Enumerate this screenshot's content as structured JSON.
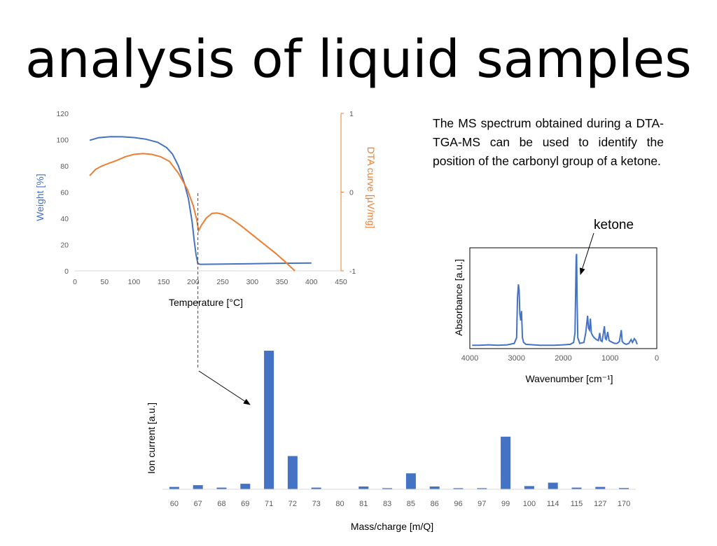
{
  "slide": {
    "title": "analysis of liquid samples",
    "description": "The MS spectrum obtained during a DTA-TGA-MS can be used to identify the position of the carbonyl group of a ketone."
  },
  "colors": {
    "blue": "#4472C4",
    "orange": "#ED7D31",
    "ir": "#4472C4"
  },
  "chart_data": [
    {
      "type": "line",
      "xlabel": "Temperature [°C]",
      "ylabel": "Weight [%]",
      "y2label": "DTA curve [µV/mg]",
      "xlim": [
        0,
        450
      ],
      "ylim": [
        0,
        120
      ],
      "y2lim": [
        -1,
        1
      ],
      "xticks": [
        "0",
        "50",
        "100",
        "150",
        "200",
        "250",
        "300",
        "350",
        "400",
        "450"
      ],
      "yticks": [
        "0",
        "20",
        "40",
        "60",
        "80",
        "100",
        "120"
      ],
      "y2ticks": [
        "-1",
        "0",
        "1"
      ],
      "marker_x": 208,
      "series": [
        {
          "axis": "left",
          "color": "#4472C4",
          "points": [
            [
              25,
              99.5
            ],
            [
              40,
              101.5
            ],
            [
              60,
              102.3
            ],
            [
              80,
              102.2
            ],
            [
              100,
              101.6
            ],
            [
              120,
              100.4
            ],
            [
              140,
              98
            ],
            [
              155,
              94
            ],
            [
              165,
              89
            ],
            [
              175,
              80
            ],
            [
              185,
              67
            ],
            [
              192,
              55
            ],
            [
              198,
              38
            ],
            [
              202,
              22
            ],
            [
              205,
              12
            ],
            [
              208,
              5.5
            ],
            [
              212,
              5
            ],
            [
              250,
              5.2
            ],
            [
              300,
              5.5
            ],
            [
              350,
              5.8
            ],
            [
              400,
              6
            ]
          ]
        },
        {
          "axis": "right",
          "color": "#ED7D31",
          "points": [
            [
              25,
              0.21
            ],
            [
              35,
              0.29
            ],
            [
              45,
              0.33
            ],
            [
              55,
              0.36
            ],
            [
              70,
              0.4
            ],
            [
              85,
              0.45
            ],
            [
              100,
              0.48
            ],
            [
              115,
              0.49
            ],
            [
              130,
              0.48
            ],
            [
              145,
              0.45
            ],
            [
              160,
              0.39
            ],
            [
              175,
              0.24
            ],
            [
              190,
              0.04
            ],
            [
              200,
              -0.17
            ],
            [
              206,
              -0.35
            ],
            [
              209,
              -0.49
            ],
            [
              214,
              -0.42
            ],
            [
              222,
              -0.33
            ],
            [
              232,
              -0.27
            ],
            [
              240,
              -0.265
            ],
            [
              250,
              -0.28
            ],
            [
              265,
              -0.34
            ],
            [
              280,
              -0.42
            ],
            [
              300,
              -0.54
            ],
            [
              320,
              -0.66
            ],
            [
              340,
              -0.78
            ],
            [
              355,
              -0.88
            ],
            [
              365,
              -0.95
            ],
            [
              372,
              -1.0
            ]
          ]
        }
      ]
    },
    {
      "type": "line",
      "xlabel": "Wavenumber [cm⁻¹]",
      "ylabel": "Absorbance [a.u.]",
      "xlim": [
        4000,
        0
      ],
      "xticks": [
        "4000",
        "3000",
        "2000",
        "1000",
        "0"
      ],
      "annotation": "ketone",
      "annotation_x": 1715,
      "series": [
        {
          "color": "#4472C4",
          "points": [
            [
              3950,
              0.02
            ],
            [
              3800,
              0.02
            ],
            [
              3600,
              0.025
            ],
            [
              3400,
              0.02
            ],
            [
              3200,
              0.025
            ],
            [
              3050,
              0.04
            ],
            [
              3000,
              0.1
            ],
            [
              2980,
              0.52
            ],
            [
              2960,
              0.66
            ],
            [
              2945,
              0.6
            ],
            [
              2930,
              0.35
            ],
            [
              2910,
              0.28
            ],
            [
              2895,
              0.38
            ],
            [
              2875,
              0.1
            ],
            [
              2850,
              0.05
            ],
            [
              2800,
              0.03
            ],
            [
              2500,
              0.02
            ],
            [
              2200,
              0.02
            ],
            [
              2000,
              0.025
            ],
            [
              1850,
              0.03
            ],
            [
              1780,
              0.05
            ],
            [
              1750,
              0.15
            ],
            [
              1725,
              0.95
            ],
            [
              1715,
              0.98
            ],
            [
              1705,
              0.5
            ],
            [
              1690,
              0.1
            ],
            [
              1650,
              0.04
            ],
            [
              1560,
              0.05
            ],
            [
              1520,
              0.15
            ],
            [
              1480,
              0.33
            ],
            [
              1460,
              0.2
            ],
            [
              1440,
              0.18
            ],
            [
              1420,
              0.3
            ],
            [
              1400,
              0.15
            ],
            [
              1370,
              0.12
            ],
            [
              1340,
              0.1
            ],
            [
              1290,
              0.08
            ],
            [
              1250,
              0.07
            ],
            [
              1220,
              0.15
            ],
            [
              1200,
              0.07
            ],
            [
              1170,
              0.06
            ],
            [
              1120,
              0.22
            ],
            [
              1100,
              0.09
            ],
            [
              1080,
              0.08
            ],
            [
              1050,
              0.16
            ],
            [
              1020,
              0.07
            ],
            [
              990,
              0.06
            ],
            [
              950,
              0.05
            ],
            [
              900,
              0.04
            ],
            [
              850,
              0.04
            ],
            [
              800,
              0.06
            ],
            [
              760,
              0.18
            ],
            [
              740,
              0.06
            ],
            [
              700,
              0.04
            ],
            [
              650,
              0.03
            ],
            [
              600,
              0.04
            ],
            [
              550,
              0.08
            ],
            [
              520,
              0.05
            ],
            [
              480,
              0.09
            ],
            [
              450,
              0.07
            ],
            [
              420,
              0.03
            ]
          ]
        }
      ]
    },
    {
      "type": "bar",
      "xlabel": "Mass/charge [m/Q]",
      "ylabel": "Ion current [a.u.]",
      "categories": [
        "60",
        "67",
        "68",
        "69",
        "71",
        "72",
        "73",
        "80",
        "81",
        "83",
        "85",
        "86",
        "96",
        "97",
        "99",
        "100",
        "114",
        "115",
        "127",
        "170"
      ],
      "values": [
        1.7,
        3.0,
        1.2,
        4.0,
        100,
        24,
        1.2,
        0,
        2.0,
        0.8,
        11.5,
        2.0,
        0.8,
        0.8,
        38,
        2.3,
        4.8,
        1.2,
        1.7,
        0.9
      ],
      "color": "#4472C4"
    }
  ]
}
